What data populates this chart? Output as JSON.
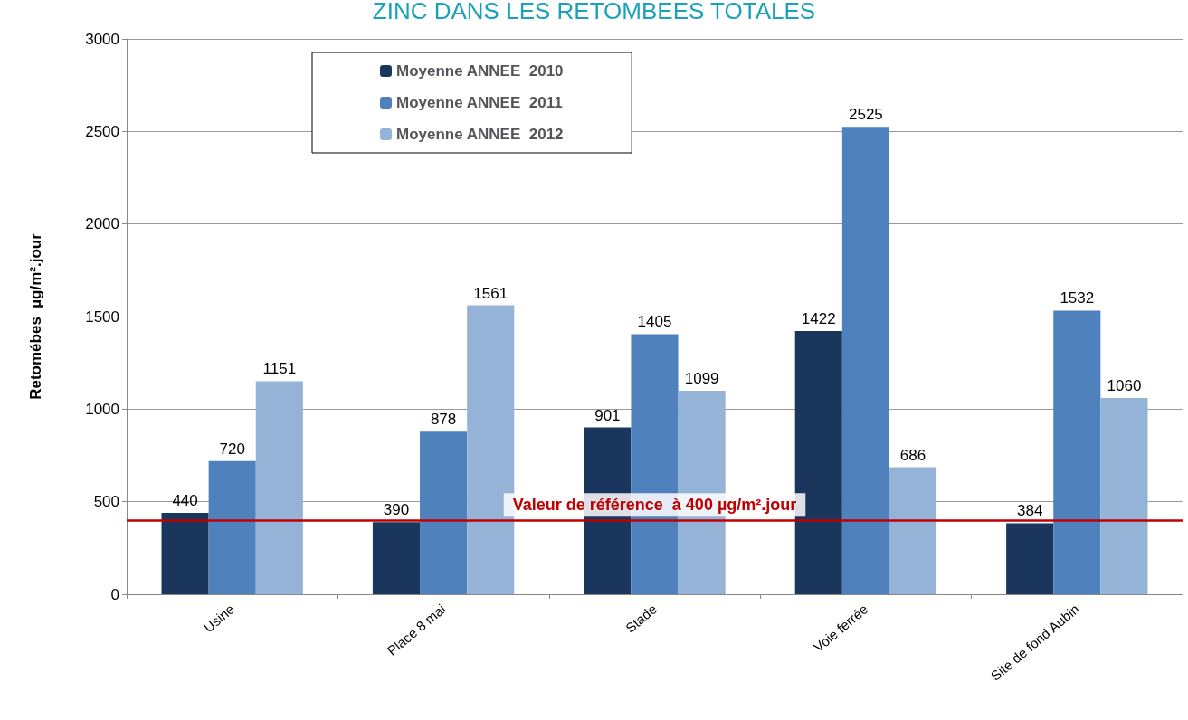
{
  "chart_data": {
    "type": "bar",
    "title": "ZINC DANS LES RETOMBEES TOTALES",
    "ylabel": "Retomébes  µg/m².jour",
    "categories": [
      "Usine",
      "Place 8 mai",
      "Stade",
      "Voie ferrée",
      "Site de fond Aubin"
    ],
    "series": [
      {
        "name": "Moyenne ANNEE  2010",
        "color": "#1b365d",
        "values": [
          440,
          390,
          901,
          1422,
          384
        ]
      },
      {
        "name": "Moyenne ANNEE  2011",
        "color": "#4f81bd",
        "values": [
          720,
          878,
          1405,
          2525,
          1532
        ]
      },
      {
        "name": "Moyenne ANNEE  2012",
        "color": "#95b3d7",
        "values": [
          1151,
          1561,
          1099,
          686,
          1060
        ]
      }
    ],
    "ylim": [
      0,
      3000
    ],
    "yticks": [
      0,
      500,
      1000,
      1500,
      2000,
      2500,
      3000
    ],
    "grid": "y",
    "legend": "top left",
    "data_labels": true,
    "ref_lines": [
      {
        "axis": "y",
        "value": 400,
        "label": "Valeur de référence  à 400 µg/m².jour",
        "color": "#c00000"
      }
    ]
  }
}
